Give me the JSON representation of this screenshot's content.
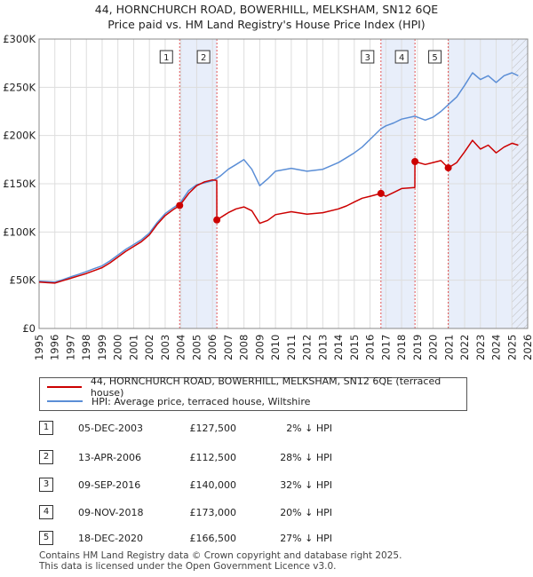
{
  "chart_data": {
    "type": "line",
    "title": "44, HORNCHURCH ROAD, BOWERHILL, MELKSHAM, SN12 6QE",
    "subtitle": "Price paid vs. HM Land Registry's House Price Index (HPI)",
    "xlabel": "",
    "ylabel": "",
    "xlim": [
      1995,
      2026
    ],
    "ylim": [
      0,
      300000
    ],
    "grid": true,
    "x_ticks": [
      "1995",
      "1996",
      "1997",
      "1998",
      "1999",
      "2000",
      "2001",
      "2002",
      "2003",
      "2004",
      "2005",
      "2006",
      "2007",
      "2008",
      "2009",
      "2010",
      "2011",
      "2012",
      "2013",
      "2014",
      "2015",
      "2016",
      "2017",
      "2018",
      "2019",
      "2020",
      "2021",
      "2022",
      "2023",
      "2024",
      "2025",
      "2026"
    ],
    "y_ticks": [
      {
        "value": 0,
        "label": "£0"
      },
      {
        "value": 50000,
        "label": "£50K"
      },
      {
        "value": 100000,
        "label": "£100K"
      },
      {
        "value": 150000,
        "label": "£150K"
      },
      {
        "value": 200000,
        "label": "£200K"
      },
      {
        "value": 250000,
        "label": "£250K"
      },
      {
        "value": 300000,
        "label": "£300K"
      }
    ],
    "series": [
      {
        "name": "44, HORNCHURCH ROAD, BOWERHILL, MELKSHAM, SN12 6QE (terraced house)",
        "color": "#cc0000",
        "points": [
          [
            1995.0,
            48000
          ],
          [
            1995.5,
            47500
          ],
          [
            1996.0,
            47000
          ],
          [
            1996.5,
            49500
          ],
          [
            1997.0,
            52000
          ],
          [
            1997.5,
            54500
          ],
          [
            1998.0,
            57000
          ],
          [
            1998.5,
            60000
          ],
          [
            1999.0,
            63000
          ],
          [
            1999.5,
            68000
          ],
          [
            2000.0,
            74000
          ],
          [
            2000.5,
            80000
          ],
          [
            2001.0,
            85000
          ],
          [
            2001.5,
            90000
          ],
          [
            2002.0,
            97000
          ],
          [
            2002.5,
            108000
          ],
          [
            2003.0,
            117000
          ],
          [
            2003.5,
            123000
          ],
          [
            2003.92,
            127500
          ],
          [
            2004.5,
            140000
          ],
          [
            2005.0,
            148000
          ],
          [
            2005.5,
            152000
          ],
          [
            2006.0,
            154000
          ],
          [
            2006.27,
            153500
          ],
          [
            2006.28,
            112500
          ],
          [
            2007.0,
            120000
          ],
          [
            2007.5,
            124000
          ],
          [
            2008.0,
            126000
          ],
          [
            2008.5,
            122000
          ],
          [
            2009.0,
            109000
          ],
          [
            2009.5,
            112000
          ],
          [
            2010.0,
            118000
          ],
          [
            2011.0,
            121000
          ],
          [
            2012.0,
            118500
          ],
          [
            2013.0,
            120000
          ],
          [
            2014.0,
            124000
          ],
          [
            2014.5,
            127000
          ],
          [
            2015.0,
            131000
          ],
          [
            2015.5,
            135000
          ],
          [
            2016.0,
            137000
          ],
          [
            2016.69,
            140000
          ],
          [
            2017.0,
            137000
          ],
          [
            2017.5,
            141000
          ],
          [
            2018.0,
            145000
          ],
          [
            2018.84,
            146000
          ],
          [
            2018.85,
            173000
          ],
          [
            2019.5,
            170000
          ],
          [
            2020.0,
            172000
          ],
          [
            2020.5,
            174000
          ],
          [
            2020.96,
            166500
          ],
          [
            2021.5,
            172000
          ],
          [
            2022.0,
            183000
          ],
          [
            2022.5,
            195000
          ],
          [
            2023.0,
            186000
          ],
          [
            2023.5,
            190000
          ],
          [
            2024.0,
            182000
          ],
          [
            2024.5,
            188000
          ],
          [
            2025.0,
            192000
          ],
          [
            2025.4,
            190000
          ]
        ]
      },
      {
        "name": "HPI: Average price, terraced house, Wiltshire",
        "color": "#5b8ed6",
        "points": [
          [
            1995.0,
            49000
          ],
          [
            1995.5,
            48500
          ],
          [
            1996.0,
            48000
          ],
          [
            1996.5,
            50500
          ],
          [
            1997.0,
            53500
          ],
          [
            1997.5,
            56000
          ],
          [
            1998.0,
            59000
          ],
          [
            1998.5,
            62000
          ],
          [
            1999.0,
            65000
          ],
          [
            1999.5,
            70000
          ],
          [
            2000.0,
            76000
          ],
          [
            2000.5,
            82000
          ],
          [
            2001.0,
            87000
          ],
          [
            2001.5,
            92000
          ],
          [
            2002.0,
            99000
          ],
          [
            2002.5,
            110000
          ],
          [
            2003.0,
            119000
          ],
          [
            2003.5,
            125000
          ],
          [
            2003.92,
            129500
          ],
          [
            2004.5,
            143000
          ],
          [
            2005.0,
            149000
          ],
          [
            2005.5,
            151000
          ],
          [
            2006.0,
            153000
          ],
          [
            2006.5,
            158000
          ],
          [
            2007.0,
            165000
          ],
          [
            2007.5,
            170000
          ],
          [
            2008.0,
            175000
          ],
          [
            2008.5,
            165000
          ],
          [
            2009.0,
            148000
          ],
          [
            2009.5,
            155000
          ],
          [
            2010.0,
            163000
          ],
          [
            2011.0,
            166000
          ],
          [
            2012.0,
            163000
          ],
          [
            2013.0,
            165000
          ],
          [
            2014.0,
            172000
          ],
          [
            2014.5,
            177000
          ],
          [
            2015.0,
            182000
          ],
          [
            2015.5,
            188000
          ],
          [
            2016.0,
            196000
          ],
          [
            2016.69,
            207000
          ],
          [
            2017.0,
            210000
          ],
          [
            2017.5,
            213000
          ],
          [
            2018.0,
            217000
          ],
          [
            2018.85,
            220000
          ],
          [
            2019.5,
            216000
          ],
          [
            2020.0,
            219000
          ],
          [
            2020.5,
            225000
          ],
          [
            2020.96,
            232000
          ],
          [
            2021.5,
            240000
          ],
          [
            2022.0,
            252000
          ],
          [
            2022.5,
            265000
          ],
          [
            2023.0,
            258000
          ],
          [
            2023.5,
            262000
          ],
          [
            2024.0,
            255000
          ],
          [
            2024.5,
            262000
          ],
          [
            2025.0,
            265000
          ],
          [
            2025.4,
            262000
          ]
        ]
      }
    ],
    "markers": [
      {
        "label": "1",
        "x": 2003.92,
        "y": 127500
      },
      {
        "label": "2",
        "x": 2006.28,
        "y": 112500
      },
      {
        "label": "3",
        "x": 2016.69,
        "y": 140000
      },
      {
        "label": "4",
        "x": 2018.85,
        "y": 173000
      },
      {
        "label": "5",
        "x": 2020.96,
        "y": 166500
      }
    ],
    "shaded_periods": [
      [
        2003.92,
        2006.28
      ],
      [
        2016.69,
        2018.85
      ],
      [
        2020.96,
        2026.0
      ]
    ],
    "shade_color": "#e8eefa",
    "hatch_from": 2025.0
  },
  "legend": {
    "property": "44, HORNCHURCH ROAD, BOWERHILL, MELKSHAM, SN12 6QE (terraced house)",
    "hpi": "HPI: Average price, terraced house, Wiltshire"
  },
  "transactions": [
    {
      "num": "1",
      "date": "05-DEC-2003",
      "price": "£127,500",
      "hpi": "2% ↓ HPI"
    },
    {
      "num": "2",
      "date": "13-APR-2006",
      "price": "£112,500",
      "hpi": "28% ↓ HPI"
    },
    {
      "num": "3",
      "date": "09-SEP-2016",
      "price": "£140,000",
      "hpi": "32% ↓ HPI"
    },
    {
      "num": "4",
      "date": "09-NOV-2018",
      "price": "£173,000",
      "hpi": "20% ↓ HPI"
    },
    {
      "num": "5",
      "date": "18-DEC-2020",
      "price": "£166,500",
      "hpi": "27% ↓ HPI"
    }
  ],
  "footer": {
    "line1": "Contains HM Land Registry data © Crown copyright and database right 2025.",
    "line2": "This data is licensed under the Open Government Licence v3.0."
  }
}
